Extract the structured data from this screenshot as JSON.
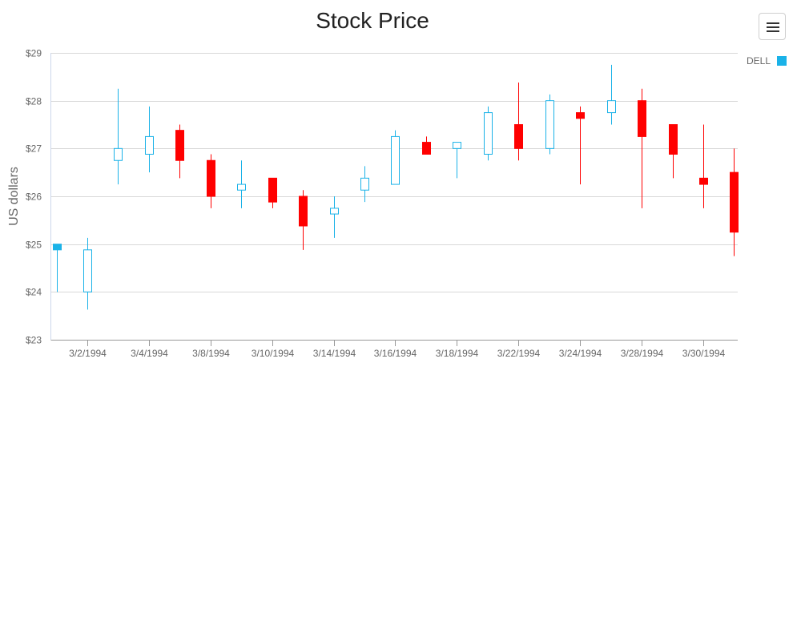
{
  "chart_data": {
    "type": "candlestick",
    "title": "Stock Price",
    "xlabel": "",
    "ylabel": "US dollars",
    "ylim": [
      23,
      29
    ],
    "yticks": [
      "$23",
      "$24",
      "$25",
      "$26",
      "$27",
      "$28",
      "$29"
    ],
    "xtick_labels": [
      "3/2/1994",
      "3/4/1994",
      "3/8/1994",
      "3/10/1994",
      "3/14/1994",
      "3/16/1994",
      "3/18/1994",
      "3/22/1994",
      "3/24/1994",
      "3/28/1994",
      "3/30/1994"
    ],
    "grid": true,
    "legend_position": "top-right",
    "series": [
      {
        "name": "DELL",
        "up_color": "#1ab2e8",
        "down_color": "#ff0000",
        "points": [
          {
            "date": "3/1/1994",
            "open": 24.88,
            "high": 25.0,
            "low": 24.0,
            "close": 25.0
          },
          {
            "date": "3/2/1994",
            "open": 24.0,
            "high": 25.13,
            "low": 23.63,
            "close": 24.88
          },
          {
            "date": "3/3/1994",
            "open": 26.75,
            "high": 28.25,
            "low": 26.25,
            "close": 27.0
          },
          {
            "date": "3/4/1994",
            "open": 26.88,
            "high": 27.88,
            "low": 26.5,
            "close": 27.25
          },
          {
            "date": "3/7/1994",
            "open": 27.38,
            "high": 27.5,
            "low": 26.38,
            "close": 26.75
          },
          {
            "date": "3/8/1994",
            "open": 26.75,
            "high": 26.88,
            "low": 25.75,
            "close": 26.0
          },
          {
            "date": "3/9/1994",
            "open": 26.13,
            "high": 26.75,
            "low": 25.75,
            "close": 26.25
          },
          {
            "date": "3/10/1994",
            "open": 26.38,
            "high": 26.38,
            "low": 25.75,
            "close": 25.88
          },
          {
            "date": "3/11/1994",
            "open": 26.0,
            "high": 26.13,
            "low": 24.88,
            "close": 25.38
          },
          {
            "date": "3/14/1994",
            "open": 25.63,
            "high": 26.0,
            "low": 25.13,
            "close": 25.75
          },
          {
            "date": "3/15/1994",
            "open": 26.13,
            "high": 26.63,
            "low": 25.88,
            "close": 26.38
          },
          {
            "date": "3/16/1994",
            "open": 26.25,
            "high": 27.38,
            "low": 26.25,
            "close": 27.25
          },
          {
            "date": "3/17/1994",
            "open": 27.13,
            "high": 27.25,
            "low": 26.88,
            "close": 26.88
          },
          {
            "date": "3/18/1994",
            "open": 27.0,
            "high": 27.13,
            "low": 26.38,
            "close": 27.13
          },
          {
            "date": "3/21/1994",
            "open": 26.88,
            "high": 27.88,
            "low": 26.75,
            "close": 27.75
          },
          {
            "date": "3/22/1994",
            "open": 27.5,
            "high": 28.38,
            "low": 26.75,
            "close": 27.0
          },
          {
            "date": "3/23/1994",
            "open": 27.0,
            "high": 28.13,
            "low": 26.88,
            "close": 28.0
          },
          {
            "date": "3/24/1994",
            "open": 27.75,
            "high": 27.88,
            "low": 26.25,
            "close": 27.63
          },
          {
            "date": "3/25/1994",
            "open": 27.75,
            "high": 28.75,
            "low": 27.5,
            "close": 28.0
          },
          {
            "date": "3/28/1994",
            "open": 28.0,
            "high": 28.25,
            "low": 25.75,
            "close": 27.25
          },
          {
            "date": "3/29/1994",
            "open": 27.5,
            "high": 27.5,
            "low": 26.38,
            "close": 26.88
          },
          {
            "date": "3/30/1994",
            "open": 26.38,
            "high": 27.5,
            "low": 25.75,
            "close": 26.25
          },
          {
            "date": "3/31/1994",
            "open": 26.5,
            "high": 27.0,
            "low": 24.75,
            "close": 25.25
          }
        ]
      }
    ]
  },
  "toolbar": {
    "menu_icon": "hamburger-menu-icon"
  },
  "legend": {
    "items": [
      {
        "label": "DELL",
        "color": "#1ab2e8"
      }
    ]
  }
}
